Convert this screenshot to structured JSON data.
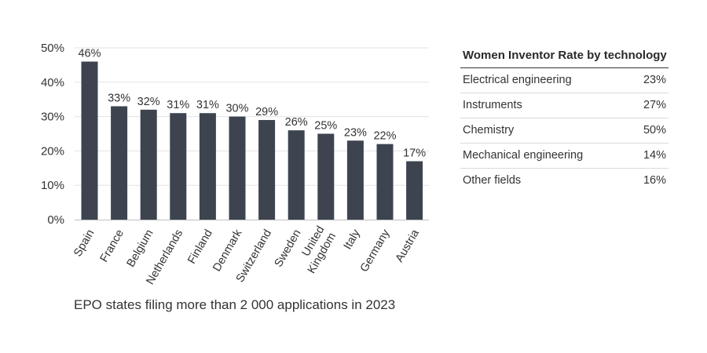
{
  "chart_data": {
    "type": "bar",
    "categories": [
      "Spain",
      "France",
      "Belgium",
      "Netherlands",
      "Finland",
      "Denmark",
      "Switzerland",
      "Sweden",
      "United\nKingdom",
      "Italy",
      "Germany",
      "Austria"
    ],
    "values": [
      46,
      33,
      32,
      31,
      31,
      30,
      29,
      26,
      25,
      23,
      22,
      17
    ],
    "data_labels": [
      "46%",
      "33%",
      "32%",
      "31%",
      "31%",
      "30%",
      "29%",
      "26%",
      "25%",
      "23%",
      "22%",
      "17%"
    ],
    "yticks": [
      0,
      10,
      20,
      30,
      40,
      50
    ],
    "ytick_labels": [
      "0%",
      "10%",
      "20%",
      "30%",
      "40%",
      "50%"
    ],
    "ylim": [
      0,
      50
    ],
    "caption": "EPO states filing more than 2 000 applications in 2023",
    "bar_color": "#3d4450",
    "grid": true
  },
  "table": {
    "title": "Women Inventor Rate by technology",
    "rows": [
      {
        "label": "Electrical engineering",
        "value": "23%"
      },
      {
        "label": "Instruments",
        "value": "27%"
      },
      {
        "label": "Chemistry",
        "value": "50%"
      },
      {
        "label": "Mechanical engineering",
        "value": "14%"
      },
      {
        "label": "Other fields",
        "value": "16%"
      }
    ]
  }
}
